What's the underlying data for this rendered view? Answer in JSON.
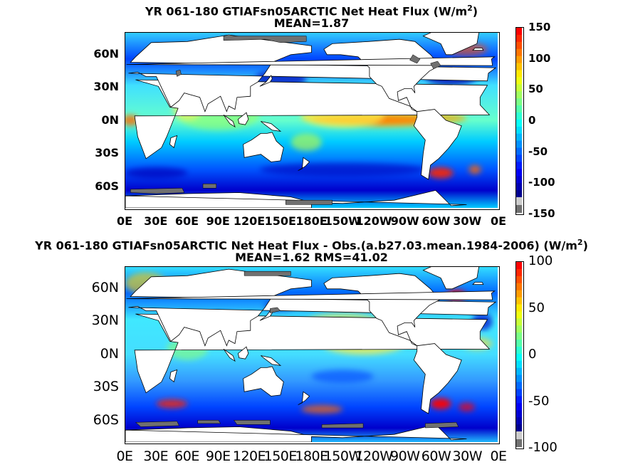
{
  "panels": [
    {
      "title_main": "YR 061-180 GTIAFsn05ARCTIC  Net Heat Flux (W/m",
      "title_sup": "2",
      "title_end": ")",
      "subtitle": "MEAN=1.87",
      "lat_ticks": [
        "60N",
        "30N",
        "0N",
        "30S",
        "60S"
      ],
      "lon_ticks": [
        "0E",
        "30E",
        "60E",
        "90E",
        "120E",
        "150E",
        "180E",
        "150W",
        "120W",
        "90W",
        "60W",
        "30W",
        "0E"
      ],
      "colorbar_ticks": [
        "150",
        "100",
        "50",
        "0",
        "-50",
        "-100",
        "-150"
      ]
    },
    {
      "title_main": "YR 061-180 GTIAFsn05ARCTIC  Net Heat Flux - Obs.(a.b27.03.mean.1984-2006) (W/m",
      "title_sup": "2",
      "title_end": ")",
      "subtitle": "MEAN=1.62 RMS=41.02",
      "lat_ticks": [
        "60N",
        "30N",
        "0N",
        "30S",
        "60S"
      ],
      "lon_ticks": [
        "0E",
        "30E",
        "60E",
        "90E",
        "120E",
        "150E",
        "180E",
        "150W",
        "120W",
        "90W",
        "60W",
        "30W",
        "0E"
      ],
      "colorbar_ticks": [
        "100",
        "50",
        "0",
        "-50",
        "-100"
      ]
    }
  ],
  "chart_data": [
    {
      "type": "heatmap",
      "title": "YR 061-180 GTIAFsn05ARCTIC  Net Heat Flux (W/m2)",
      "subtitle": "MEAN=1.87",
      "mean": 1.87,
      "x_ticks": [
        "0E",
        "30E",
        "60E",
        "90E",
        "120E",
        "150E",
        "180E",
        "150W",
        "120W",
        "90W",
        "60W",
        "30W",
        "0E"
      ],
      "y_ticks": [
        "60N",
        "30N",
        "0N",
        "30S",
        "60S"
      ],
      "colorbar_range": [
        -150,
        150
      ],
      "colorbar_ticks": [
        150,
        100,
        50,
        0,
        -50,
        -100,
        -150
      ],
      "colormap": [
        "#00008f",
        "#0000ff",
        "#0080ff",
        "#00ffff",
        "#80ff80",
        "#ffff00",
        "#ff8000",
        "#ff0000"
      ],
      "land_color": "#ffffff",
      "ice_color": "#707070"
    },
    {
      "type": "heatmap",
      "title": "YR 061-180 GTIAFsn05ARCTIC  Net Heat Flux - Obs.(a.b27.03.mean.1984-2006) (W/m2)",
      "subtitle": "MEAN=1.62 RMS=41.02",
      "mean": 1.62,
      "rms": 41.02,
      "x_ticks": [
        "0E",
        "30E",
        "60E",
        "90E",
        "120E",
        "150E",
        "180E",
        "150W",
        "120W",
        "90W",
        "60W",
        "30W",
        "0E"
      ],
      "y_ticks": [
        "60N",
        "30N",
        "0N",
        "30S",
        "60S"
      ],
      "colorbar_range": [
        -100,
        100
      ],
      "colorbar_ticks": [
        100,
        50,
        0,
        -50,
        -100
      ],
      "colormap": [
        "#00008f",
        "#0000ff",
        "#0080ff",
        "#00ffff",
        "#80ff80",
        "#ffff00",
        "#ff8000",
        "#ff0000"
      ],
      "land_color": "#ffffff",
      "ice_color": "#707070"
    }
  ]
}
